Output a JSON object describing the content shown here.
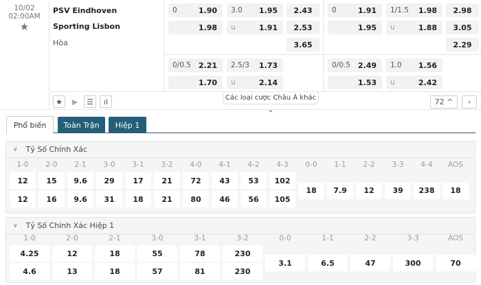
{
  "match": {
    "date": "10/02",
    "time": "02:00AM",
    "home": "PSV Eindhoven",
    "away": "Sporting Lisbon",
    "draw": "Hòa",
    "fulltime": {
      "hdp": {
        "line": "0",
        "home": "1.90",
        "away": "1.98"
      },
      "ou": {
        "line": "3.0",
        "over": "1.95",
        "under_label": "u",
        "under": "1.91"
      },
      "x12": {
        "home": "2.43",
        "away": "2.53",
        "draw": "3.65"
      },
      "hdp2": {
        "line": "0/0.5",
        "home": "2.21",
        "away": "1.70"
      },
      "ou2": {
        "line": "2.5/3",
        "over": "1.73",
        "under_label": "u",
        "under": "2.14"
      }
    },
    "firsthalf": {
      "hdp": {
        "line": "0",
        "home": "1.91",
        "away": "1.95"
      },
      "ou": {
        "line": "1/1.5",
        "over": "1.98",
        "under_label": "u",
        "under": "1.88"
      },
      "x12": {
        "home": "2.98",
        "away": "3.05",
        "draw": "2.29"
      },
      "hdp2": {
        "line": "0/0.5",
        "home": "2.49",
        "away": "1.53"
      },
      "ou2": {
        "line": "1.0",
        "over": "1.56",
        "under_label": "u",
        "under": "2.42"
      }
    },
    "more_asian_label": "Các loại cược Châu Á khác",
    "more_count": "72",
    "accent": "#245f7a"
  },
  "tabs": [
    {
      "label": "Phổ biến",
      "active": true
    },
    {
      "label": "Toàn Trận",
      "active": false
    },
    {
      "label": "Hiệp 1",
      "active": false
    }
  ],
  "sections": [
    {
      "title": "Tỷ Số Chính Xác",
      "scores": [
        "1-0",
        "2-0",
        "2-1",
        "3-0",
        "3-1",
        "3-2",
        "4-0",
        "4-1",
        "4-2",
        "4-3"
      ],
      "home": [
        "12",
        "15",
        "9.6",
        "29",
        "17",
        "21",
        "72",
        "43",
        "53",
        "102"
      ],
      "away": [
        "12",
        "16",
        "9.6",
        "31",
        "18",
        "21",
        "80",
        "46",
        "56",
        "105"
      ],
      "draws": [
        "0-0",
        "1-1",
        "2-2",
        "3-3",
        "4-4",
        "AOS"
      ],
      "draw_values": [
        "18",
        "7.9",
        "12",
        "39",
        "238",
        "18"
      ]
    },
    {
      "title": "Tỷ Số Chính Xác Hiệp 1",
      "scores": [
        "1-0",
        "2-0",
        "2-1",
        "3-0",
        "3-1",
        "3-2"
      ],
      "home": [
        "4.25",
        "12",
        "18",
        "55",
        "78",
        "230"
      ],
      "away": [
        "4.6",
        "13",
        "18",
        "57",
        "81",
        "230"
      ],
      "draws": [
        "0-0",
        "1-1",
        "2-2",
        "3-3",
        "AOS"
      ],
      "draw_values": [
        "3.1",
        "6.5",
        "47",
        "300",
        "70"
      ]
    }
  ]
}
